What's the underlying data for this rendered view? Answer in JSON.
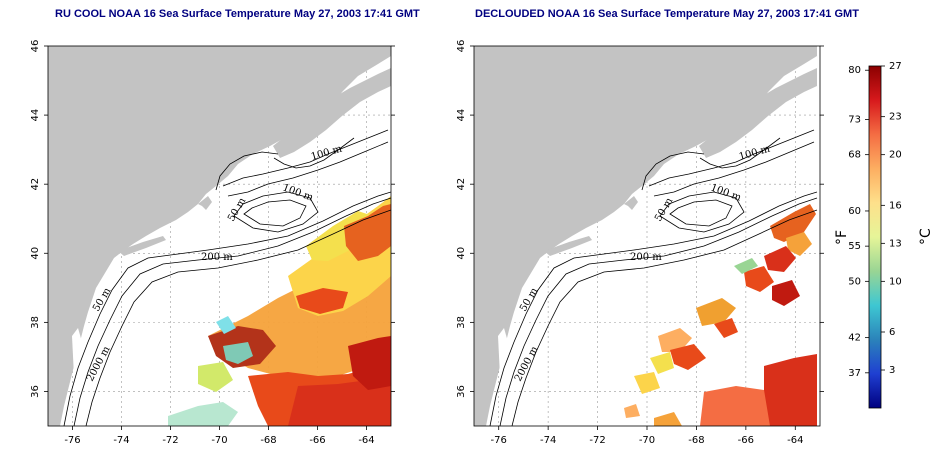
{
  "panels": [
    {
      "id": "left",
      "title": "RU COOL NOAA 16 Sea Surface Temperature May 27, 2003 17:41 GMT",
      "x_ticks": [
        "-76",
        "-74",
        "-72",
        "-70",
        "-68",
        "-66",
        "-64"
      ],
      "y_ticks": [
        "36",
        "38",
        "40",
        "42",
        "44",
        "46"
      ],
      "contour_labels": [
        "100 m",
        "100 m",
        "50 m",
        "200 m",
        "50 m",
        "2000 m"
      ]
    },
    {
      "id": "right",
      "title": "DECLOUDED NOAA 16 Sea Surface Temperature May 27, 2003 17:41 GMT",
      "x_ticks": [
        "-76",
        "-74",
        "-72",
        "-70",
        "-68",
        "-66",
        "-64"
      ],
      "y_ticks": [
        "36",
        "38",
        "40",
        "42",
        "44",
        "46"
      ],
      "contour_labels": [
        "100 m",
        "100 m",
        "50 m",
        "200 m",
        "50 m",
        "2000 m"
      ]
    }
  ],
  "colorbar": {
    "fahrenheit_ticks": [
      "80",
      "73",
      "68",
      "60",
      "55",
      "50",
      "42",
      "37"
    ],
    "celsius_ticks": [
      "27",
      "23",
      "20",
      "16",
      "13",
      "10",
      "6",
      "3"
    ],
    "fahrenheit_unit": "°F",
    "celsius_unit": "°C",
    "colors": [
      "#8b0000",
      "#d7191c",
      "#f46d43",
      "#fdae61",
      "#fee08b",
      "#e6f598",
      "#99d594",
      "#3ec7d2",
      "#2b83ba",
      "#1f3fd1",
      "#000080"
    ]
  },
  "colors": {
    "land": "#c3c3c3",
    "ocean": "#ffffff",
    "title": "#000080",
    "contour": "#000000"
  }
}
